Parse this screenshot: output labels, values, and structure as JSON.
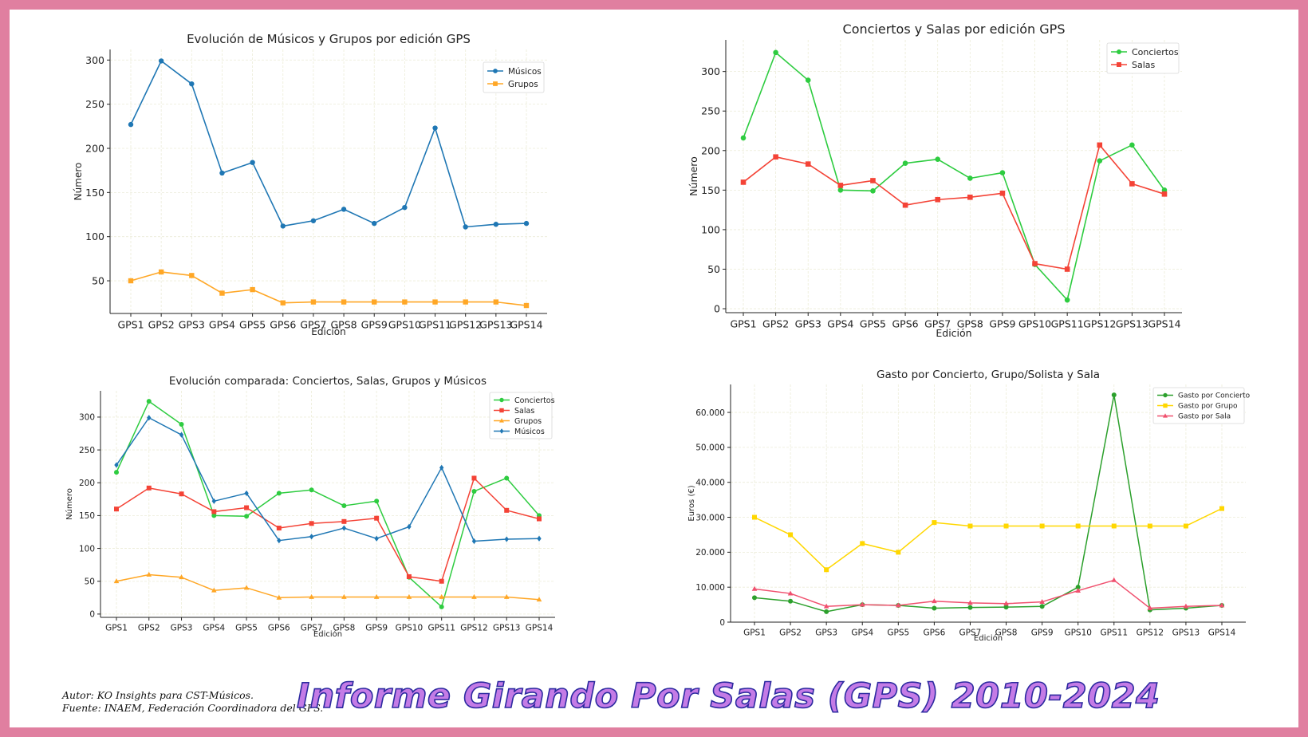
{
  "colors": {
    "page_border": "#e07fa0",
    "musicos": "#1f77b4",
    "grupos": "#ffa726",
    "conciertos": "#2ecc40",
    "salas": "#f44336",
    "gasto_concierto": "#2ca02c",
    "gasto_grupo": "#ffd700",
    "gasto_sala": "#f0506e",
    "banner_fill": "#c47be6",
    "banner_stroke": "#2c2aa0"
  },
  "credits": {
    "author": "Autor: KO Insights para CST-Músicos.",
    "source": "Fuente: INAEM, Federación Coordinadora del GPS."
  },
  "banner": {
    "title": "Informe Girando Por Salas (GPS) 2010-2024"
  },
  "chart_data": [
    {
      "type": "line",
      "title": "Evolución de Músicos y Grupos por edición GPS",
      "xlabel": "Edición",
      "ylabel": "Número",
      "categories": [
        "GPS1",
        "GPS2",
        "GPS3",
        "GPS4",
        "GPS5",
        "GPS6",
        "GPS7",
        "GPS8",
        "GPS9",
        "GPS10",
        "GPS11",
        "GPS12",
        "GPS13",
        "GPS14"
      ],
      "ylim": [
        13,
        312
      ],
      "yticks": [
        50,
        100,
        150,
        200,
        250,
        300
      ],
      "ytick_labels": [
        "50",
        "100",
        "150",
        "200",
        "250",
        "300"
      ],
      "grid": true,
      "legend": "top-right",
      "series": [
        {
          "name": "Músicos",
          "color": "#1f77b4",
          "marker": "circle",
          "values": [
            227,
            299,
            273,
            172,
            184,
            112,
            118,
            131,
            115,
            133,
            223,
            111,
            114,
            115
          ]
        },
        {
          "name": "Grupos",
          "color": "#ffa726",
          "marker": "square",
          "values": [
            50,
            60,
            56,
            36,
            40,
            25,
            26,
            26,
            26,
            26,
            26,
            26,
            26,
            22
          ]
        }
      ]
    },
    {
      "type": "line",
      "title": "Conciertos y Salas por edición GPS",
      "xlabel": "Edición",
      "ylabel": "Número",
      "categories": [
        "GPS1",
        "GPS2",
        "GPS3",
        "GPS4",
        "GPS5",
        "GPS6",
        "GPS7",
        "GPS8",
        "GPS9",
        "GPS10",
        "GPS11",
        "GPS12",
        "GPS13",
        "GPS14"
      ],
      "ylim": [
        -5,
        340
      ],
      "yticks": [
        0,
        50,
        100,
        150,
        200,
        250,
        300
      ],
      "ytick_labels": [
        "0",
        "50",
        "100",
        "150",
        "200",
        "250",
        "300"
      ],
      "grid": true,
      "legend": "top-right",
      "series": [
        {
          "name": "Conciertos",
          "color": "#2ecc40",
          "marker": "circle",
          "values": [
            216,
            324,
            289,
            150,
            149,
            184,
            189,
            165,
            172,
            56,
            11,
            187,
            207,
            150
          ]
        },
        {
          "name": "Salas",
          "color": "#f44336",
          "marker": "square",
          "values": [
            160,
            192,
            183,
            156,
            162,
            131,
            138,
            141,
            146,
            57,
            50,
            207,
            158,
            145
          ]
        }
      ]
    },
    {
      "type": "line",
      "title": "Evolución comparada: Conciertos, Salas, Grupos y Músicos",
      "xlabel": "Edición",
      "ylabel": "Número",
      "categories": [
        "GPS1",
        "GPS2",
        "GPS3",
        "GPS4",
        "GPS5",
        "GPS6",
        "GPS7",
        "GPS8",
        "GPS9",
        "GPS10",
        "GPS11",
        "GPS12",
        "GPS13",
        "GPS14"
      ],
      "ylim": [
        -5,
        340
      ],
      "yticks": [
        0,
        50,
        100,
        150,
        200,
        250,
        300
      ],
      "ytick_labels": [
        "0",
        "50",
        "100",
        "150",
        "200",
        "250",
        "300"
      ],
      "grid": true,
      "legend": "top-right",
      "series": [
        {
          "name": "Conciertos",
          "color": "#2ecc40",
          "marker": "circle",
          "values": [
            216,
            324,
            289,
            150,
            149,
            184,
            189,
            165,
            172,
            56,
            11,
            187,
            207,
            150
          ]
        },
        {
          "name": "Salas",
          "color": "#f44336",
          "marker": "square",
          "values": [
            160,
            192,
            183,
            156,
            162,
            131,
            138,
            141,
            146,
            57,
            50,
            207,
            158,
            145
          ]
        },
        {
          "name": "Grupos",
          "color": "#ffa726",
          "marker": "triangle",
          "values": [
            50,
            60,
            56,
            36,
            40,
            25,
            26,
            26,
            26,
            26,
            26,
            26,
            26,
            22
          ]
        },
        {
          "name": "Músicos",
          "color": "#1f77b4",
          "marker": "diamond",
          "values": [
            227,
            299,
            273,
            172,
            184,
            112,
            118,
            131,
            115,
            133,
            223,
            111,
            114,
            115
          ]
        }
      ]
    },
    {
      "type": "line",
      "title": "Gasto por Concierto, Grupo/Solista y Sala",
      "xlabel": "Edición",
      "ylabel": "Euros (€)",
      "categories": [
        "GPS1",
        "GPS2",
        "GPS3",
        "GPS4",
        "GPS5",
        "GPS6",
        "GPS7",
        "GPS8",
        "GPS9",
        "GPS10",
        "GPS11",
        "GPS12",
        "GPS13",
        "GPS14"
      ],
      "ylim": [
        0,
        68000
      ],
      "yticks": [
        0,
        10000,
        20000,
        30000,
        40000,
        50000,
        60000
      ],
      "ytick_labels": [
        "0",
        "10.000",
        "20.000",
        "30.000",
        "40.000",
        "50.000",
        "60.000"
      ],
      "grid": true,
      "legend": "top-right",
      "series": [
        {
          "name": "Gasto por Concierto",
          "color": "#2ca02c",
          "marker": "circle",
          "values": [
            7000,
            6000,
            3000,
            5000,
            4800,
            4000,
            4200,
            4300,
            4500,
            10000,
            65000,
            3500,
            4000,
            4800
          ]
        },
        {
          "name": "Gasto por Grupo",
          "color": "#ffd700",
          "marker": "square",
          "values": [
            30000,
            25000,
            15000,
            22500,
            20000,
            28500,
            27500,
            27500,
            27500,
            27500,
            27500,
            27500,
            27500,
            32500
          ]
        },
        {
          "name": "Gasto por Sala",
          "color": "#f0506e",
          "marker": "triangle",
          "values": [
            9500,
            8200,
            4500,
            5000,
            4800,
            6000,
            5500,
            5300,
            5800,
            9000,
            12000,
            4000,
            4500,
            4800
          ]
        }
      ]
    }
  ]
}
